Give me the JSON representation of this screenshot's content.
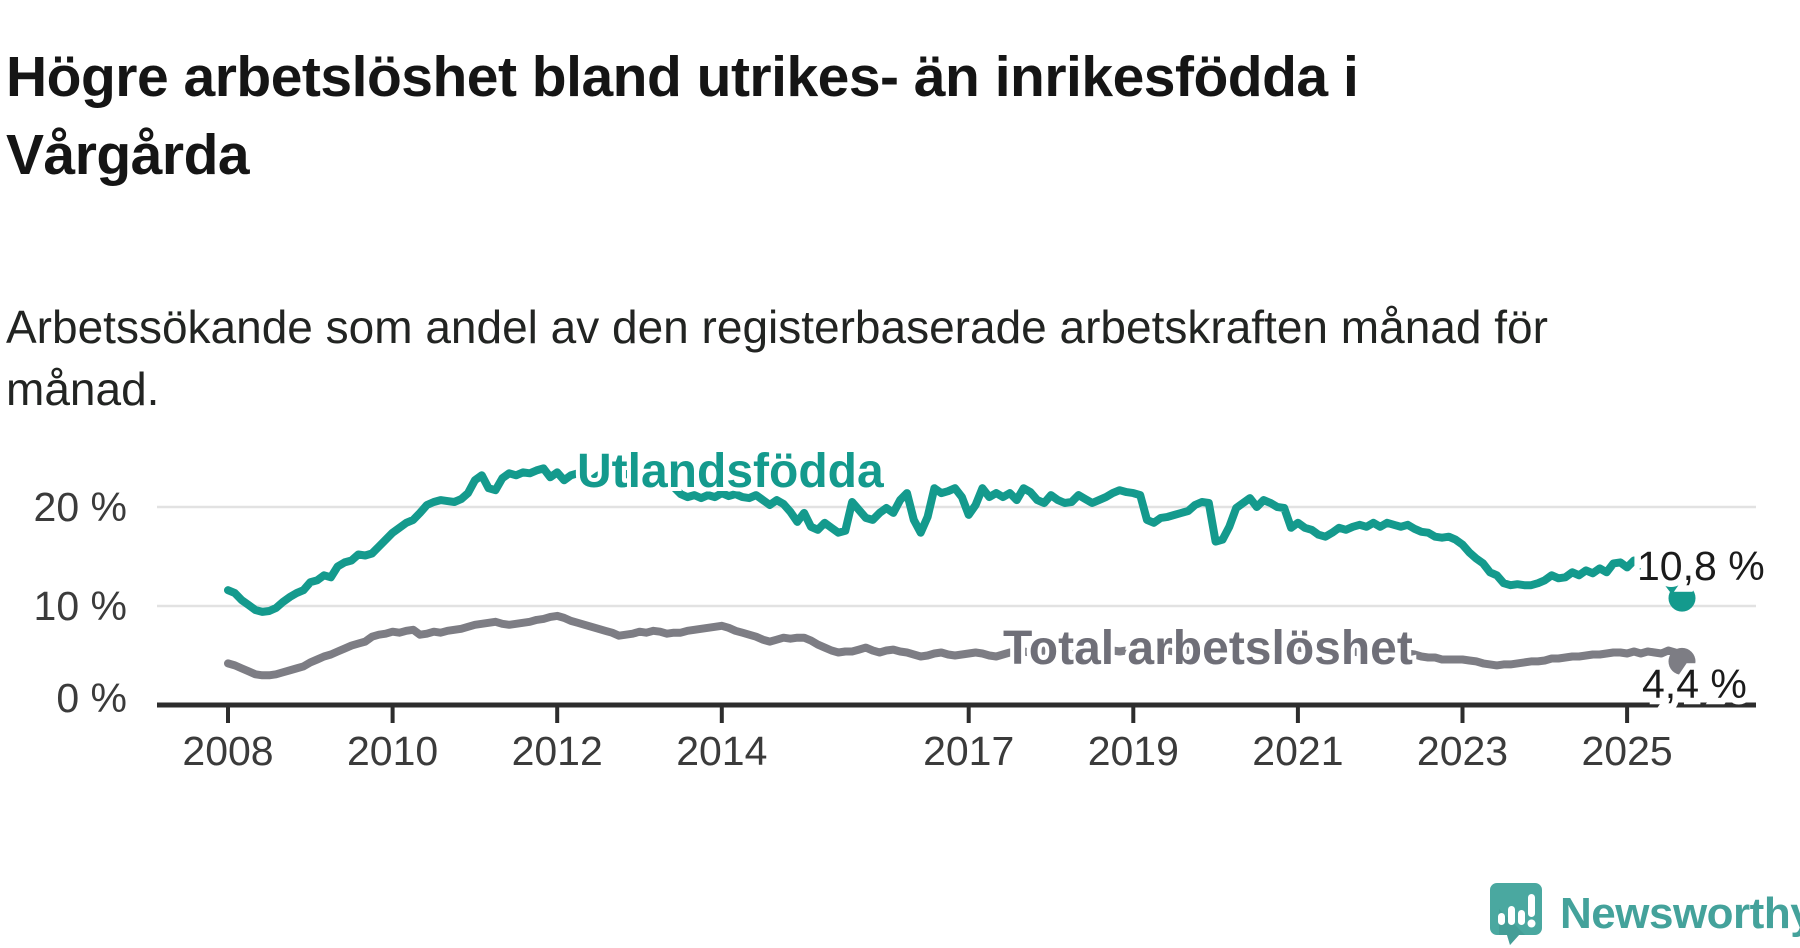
{
  "title": "Högre arbetslöshet bland utrikes- än inrikesfödda i Vårgårda",
  "subtitle": "Arbetssökande som andel av den registerbaserade arbetskraften månad för månad.",
  "y_axis": {
    "ticks": [
      {
        "label": "20 %",
        "value": 20
      },
      {
        "label": "10 %",
        "value": 10
      },
      {
        "label": "0 %",
        "value": 0
      }
    ]
  },
  "x_axis": {
    "ticks": [
      {
        "label": "2008",
        "year": 2008
      },
      {
        "label": "2010",
        "year": 2010
      },
      {
        "label": "2012",
        "year": 2012
      },
      {
        "label": "2014",
        "year": 2014
      },
      {
        "label": "2017",
        "year": 2017
      },
      {
        "label": "2019",
        "year": 2019
      },
      {
        "label": "2021",
        "year": 2021
      },
      {
        "label": "2023",
        "year": 2023
      },
      {
        "label": "2025",
        "year": 2025
      }
    ]
  },
  "chart_data": {
    "type": "line",
    "title": "Högre arbetslöshet bland utrikes- än inrikesfödda i Vårgårda",
    "subtitle": "Arbetssökande som andel av den registerbaserade arbetskraften månad för månad.",
    "unit": "%",
    "x_start": "2008-01",
    "x_end": "2025-09",
    "x_interval": "monthly",
    "ylim": [
      0,
      24.5
    ],
    "grid": "horizontal gridlines at 10 and 20",
    "legend_position": "inline-labels-on-lines",
    "series": [
      {
        "name": "Utlandsfödda",
        "color": "#149a8d",
        "label_color": "#149a8d",
        "end_label": "10,8 %",
        "end_value": 10.8,
        "values": [
          11.6,
          11.3,
          10.6,
          10.1,
          9.6,
          9.4,
          9.5,
          9.8,
          10.4,
          10.9,
          11.3,
          11.6,
          12.4,
          12.6,
          13.1,
          12.9,
          14.0,
          14.4,
          14.6,
          15.2,
          15.1,
          15.3,
          16.0,
          16.7,
          17.4,
          17.9,
          18.4,
          18.7,
          19.4,
          20.2,
          20.5,
          20.7,
          20.6,
          20.5,
          20.8,
          21.4,
          22.7,
          23.2,
          21.9,
          21.7,
          22.9,
          23.4,
          23.2,
          23.5,
          23.4,
          23.7,
          23.9,
          23.0,
          23.5,
          22.7,
          23.2,
          23.4,
          22.9,
          22.7,
          23.2,
          23.4,
          23.0,
          23.2,
          23.4,
          23.0,
          23.4,
          23.2,
          23.3,
          23.1,
          22.8,
          22.0,
          21.3,
          21.0,
          21.2,
          20.9,
          21.2,
          21.0,
          21.4,
          21.1,
          21.3,
          21.0,
          20.9,
          21.2,
          20.7,
          20.2,
          20.7,
          20.3,
          19.5,
          18.5,
          19.4,
          18.0,
          17.7,
          18.4,
          17.9,
          17.4,
          17.6,
          20.5,
          19.7,
          18.9,
          18.7,
          19.4,
          19.9,
          19.4,
          20.7,
          21.4,
          18.7,
          17.4,
          19.0,
          21.9,
          21.4,
          21.6,
          21.9,
          21.0,
          19.2,
          20.2,
          21.9,
          21.0,
          21.4,
          21.0,
          21.4,
          20.7,
          21.9,
          21.5,
          20.7,
          20.4,
          21.2,
          20.7,
          20.4,
          20.5,
          21.2,
          20.8,
          20.4,
          20.7,
          21.0,
          21.4,
          21.7,
          21.5,
          21.4,
          21.2,
          18.7,
          18.4,
          18.9,
          19.0,
          19.2,
          19.4,
          19.6,
          20.2,
          20.5,
          20.4,
          16.5,
          16.7,
          18.0,
          19.9,
          20.4,
          20.9,
          20.0,
          20.7,
          20.4,
          20.0,
          19.9,
          17.9,
          18.4,
          17.9,
          17.7,
          17.2,
          17.0,
          17.4,
          17.9,
          17.7,
          18.0,
          18.2,
          18.0,
          18.4,
          18.0,
          18.4,
          18.2,
          18.0,
          18.2,
          17.8,
          17.5,
          17.4,
          17.0,
          16.9,
          17.0,
          16.7,
          16.2,
          15.4,
          14.8,
          14.3,
          13.4,
          13.1,
          12.3,
          12.1,
          12.2,
          12.1,
          12.1,
          12.3,
          12.6,
          13.1,
          12.8,
          12.9,
          13.4,
          13.1,
          13.6,
          13.3,
          13.8,
          13.4,
          14.3,
          14.4,
          13.9,
          14.6,
          14.1,
          13.9,
          13.8,
          12.9,
          12.3,
          11.4,
          10.8
        ]
      },
      {
        "name": "Total arbetslöshet",
        "color": "#7d7d84",
        "label_color": "#6f6f78",
        "end_label": "4,4 %",
        "end_value": 4.4,
        "values": [
          4.2,
          4.0,
          3.7,
          3.4,
          3.1,
          3.0,
          3.0,
          3.1,
          3.3,
          3.5,
          3.7,
          3.9,
          4.3,
          4.6,
          4.9,
          5.1,
          5.4,
          5.7,
          6.0,
          6.2,
          6.4,
          6.9,
          7.1,
          7.2,
          7.4,
          7.3,
          7.5,
          7.6,
          7.1,
          7.2,
          7.4,
          7.3,
          7.5,
          7.6,
          7.7,
          7.9,
          8.1,
          8.2,
          8.3,
          8.4,
          8.2,
          8.1,
          8.2,
          8.3,
          8.4,
          8.6,
          8.7,
          8.9,
          9.0,
          8.8,
          8.5,
          8.3,
          8.1,
          7.9,
          7.7,
          7.5,
          7.3,
          7.0,
          7.1,
          7.2,
          7.4,
          7.3,
          7.5,
          7.4,
          7.2,
          7.3,
          7.3,
          7.5,
          7.6,
          7.7,
          7.8,
          7.9,
          8.0,
          7.8,
          7.5,
          7.3,
          7.1,
          6.9,
          6.6,
          6.4,
          6.6,
          6.8,
          6.7,
          6.8,
          6.8,
          6.5,
          6.1,
          5.8,
          5.5,
          5.3,
          5.4,
          5.4,
          5.6,
          5.8,
          5.5,
          5.3,
          5.5,
          5.6,
          5.4,
          5.3,
          5.1,
          4.9,
          5.0,
          5.2,
          5.3,
          5.1,
          5.0,
          5.1,
          5.2,
          5.3,
          5.2,
          5.0,
          4.9,
          5.1,
          5.3,
          5.4,
          5.4,
          5.3,
          5.4,
          5.5,
          5.4,
          5.3,
          5.4,
          5.5,
          5.4,
          5.3,
          5.4,
          5.5,
          5.6,
          5.5,
          5.4,
          5.5,
          5.4,
          5.3,
          5.4,
          5.3,
          5.4,
          5.5,
          5.4,
          5.5,
          5.6,
          5.5,
          5.6,
          5.7,
          5.8,
          5.9,
          6.1,
          6.3,
          6.4,
          6.3,
          6.2,
          6.1,
          6.0,
          5.9,
          5.8,
          5.7,
          5.8,
          5.7,
          5.6,
          5.5,
          5.4,
          5.3,
          5.4,
          5.3,
          5.4,
          5.3,
          5.4,
          5.3,
          5.4,
          5.3,
          5.3,
          5.2,
          5.2,
          5.1,
          4.9,
          4.8,
          4.8,
          4.6,
          4.6,
          4.6,
          4.6,
          4.5,
          4.4,
          4.2,
          4.1,
          4.0,
          4.1,
          4.1,
          4.2,
          4.3,
          4.4,
          4.4,
          4.5,
          4.7,
          4.7,
          4.8,
          4.9,
          4.9,
          5.0,
          5.1,
          5.1,
          5.2,
          5.3,
          5.3,
          5.2,
          5.4,
          5.2,
          5.4,
          5.3,
          5.2,
          5.5,
          5.3,
          4.4
        ]
      }
    ]
  },
  "branding": {
    "logo_text": "Newsworthy",
    "logo_color": "#44a29b",
    "logo_icon": "newsworthy-speech-bubble-bar-chart-icon",
    "icon_fill": "#4aa8a0"
  },
  "colors": {
    "background": "#ffffff",
    "gridline": "#e2e2e2",
    "axis": "#2d2d2d",
    "axis_text": "#3b3b3b",
    "accent_teal": "#149a8d",
    "neutral_gray": "#7d7d84"
  }
}
